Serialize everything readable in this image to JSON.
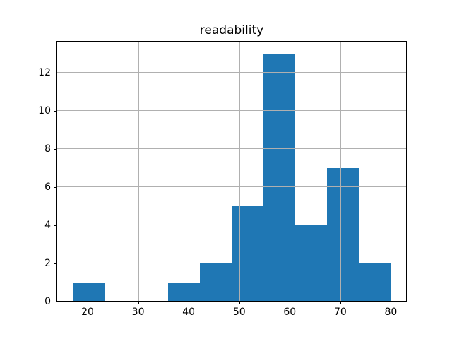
{
  "chart_data": {
    "type": "bar",
    "subtype": "histogram",
    "title": "readability",
    "xlabel": "",
    "ylabel": "",
    "bin_edges": [
      17.0,
      23.3,
      29.6,
      35.9,
      42.2,
      48.5,
      54.8,
      61.1,
      67.4,
      73.7,
      80.0
    ],
    "counts": [
      1,
      0,
      0,
      1,
      2,
      5,
      13,
      4,
      7,
      2
    ],
    "x_ticks": [
      20,
      30,
      40,
      50,
      60,
      70,
      80
    ],
    "y_ticks": [
      0,
      2,
      4,
      6,
      8,
      10,
      12
    ],
    "xlim": [
      13.85,
      83.15
    ],
    "ylim": [
      0,
      13.65
    ],
    "grid": true,
    "grid_above_bars": true,
    "legend": "none",
    "colors": {
      "bar_fill": "#1f77b4",
      "grid": "#b0b0b0",
      "spine": "#000000",
      "text": "#000000",
      "background": "#ffffff"
    }
  }
}
